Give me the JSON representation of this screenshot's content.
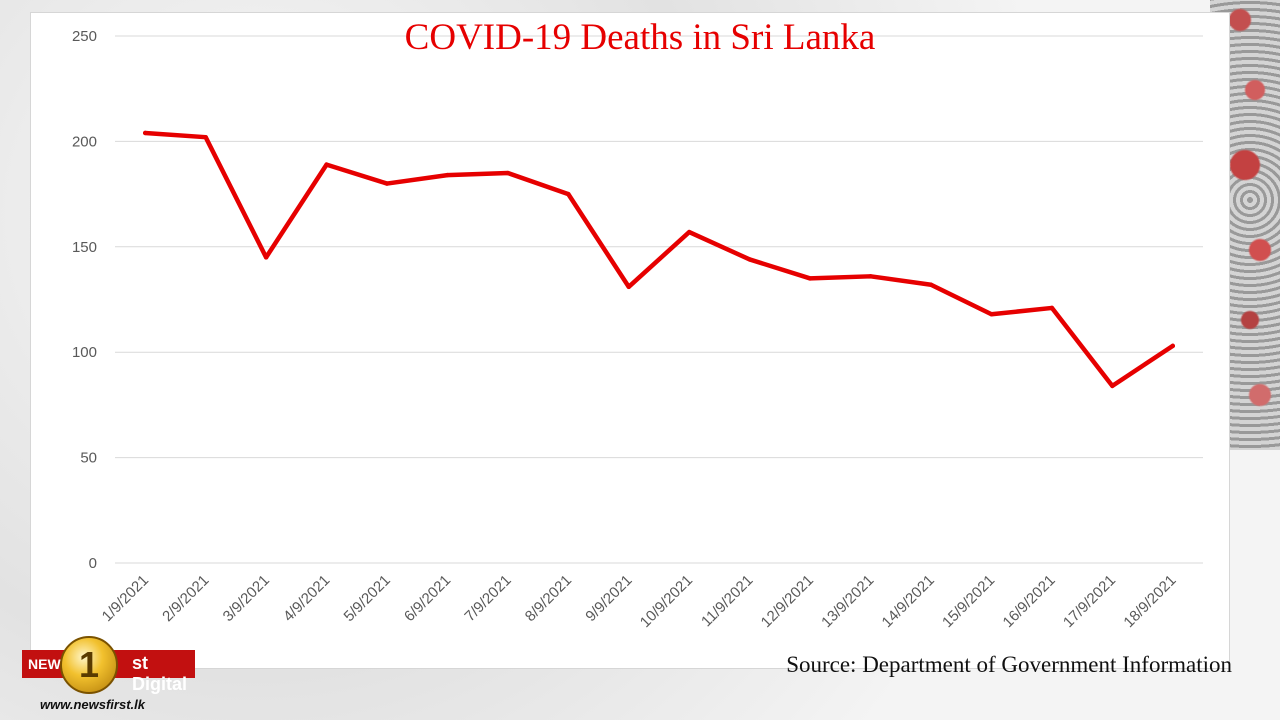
{
  "chart_data": {
    "type": "line",
    "title": "COVID-19 Deaths in Sri Lanka",
    "categories": [
      "1/9/2021",
      "2/9/2021",
      "3/9/2021",
      "4/9/2021",
      "5/9/2021",
      "6/9/2021",
      "7/9/2021",
      "8/9/2021",
      "9/9/2021",
      "10/9/2021",
      "11/9/2021",
      "12/9/2021",
      "13/9/2021",
      "14/9/2021",
      "15/9/2021",
      "16/9/2021",
      "17/9/2021",
      "18/9/2021"
    ],
    "series": [
      {
        "values": [
          204,
          202,
          145,
          189,
          180,
          184,
          185,
          175,
          131,
          157,
          144,
          135,
          136,
          132,
          118,
          121,
          84,
          103
        ],
        "color": "#e60000"
      }
    ],
    "ylim": [
      0,
      250
    ],
    "yticks": [
      0,
      50,
      100,
      150,
      200,
      250
    ],
    "grid": true,
    "legend": "none"
  },
  "source": "Source: Department of Government Information",
  "logo": {
    "news": "NEWS",
    "one": "1",
    "digital": "st Digital",
    "url": "www.newsfirst.lk"
  }
}
